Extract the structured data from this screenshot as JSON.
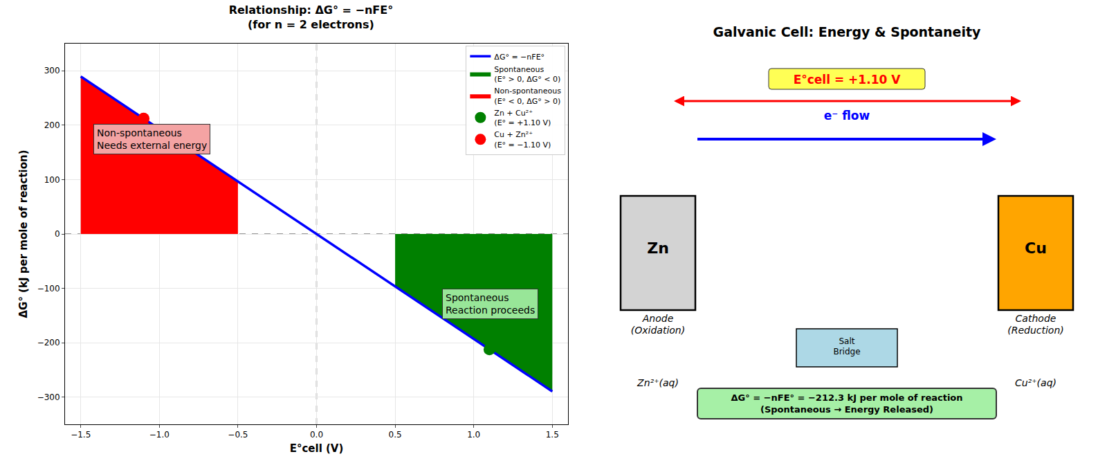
{
  "chart_data": {
    "type": "line",
    "title": "Relationship: ΔG° = −nFE°\n(for n = 2 electrons)",
    "x_label": "E°cell (V)",
    "y_label": "ΔG° (kJ per mole of reaction)",
    "xlim": [
      -1.6,
      1.6
    ],
    "xticks": [
      {
        "value": -1.5,
        "label": "−1.5"
      },
      {
        "value": -1.0,
        "label": "−1.0"
      },
      {
        "value": -0.5,
        "label": "−0.5"
      },
      {
        "value": 0,
        "label": "0.0"
      },
      0.5,
      {
        "value": 1.0,
        "label": "1.0"
      },
      1.5
    ],
    "ylim": [
      -350,
      350
    ],
    "yticks": [
      {
        "value": -300,
        "label": "−300"
      },
      {
        "value": -200,
        "label": "−200"
      },
      {
        "value": -100,
        "label": "−100"
      },
      0,
      100,
      200,
      300
    ],
    "grid": true,
    "legend": "upper right",
    "reference_lines": [
      {
        "axis": "x",
        "value": 0
      },
      {
        "axis": "y",
        "value": 0
      }
    ],
    "series": [
      {
        "name": "ΔG° = −nFE°",
        "type": "line",
        "color": "blue",
        "x": [
          -1.5,
          -1.0,
          -0.5,
          0,
          0.5,
          1.0,
          1.5
        ],
        "values": [
          289.5,
          193,
          96.5,
          0,
          -96.5,
          -193,
          -289.5
        ]
      },
      {
        "name": "Spontaneous\n(E° > 0, ΔG° < 0)",
        "type": "area",
        "color": "green",
        "x": [
          0.5,
          1.0,
          1.5
        ],
        "values": [
          -96.5,
          -193,
          -289.5
        ]
      },
      {
        "name": "Non-spontaneous\n(E° < 0, ΔG° > 0)",
        "type": "area",
        "color": "red",
        "x": [
          -1.5,
          -1.0,
          -0.5
        ],
        "values": [
          289.5,
          193,
          96.5
        ]
      },
      {
        "name": "Zn + Cu²⁺\n(E° = +1.10 V)",
        "type": "scatter",
        "color": "green",
        "marker": "circle",
        "x": [
          1.1
        ],
        "values": [
          -212.3
        ]
      },
      {
        "name": "Cu + Zn²⁺\n(E° = −1.10 V)",
        "type": "scatter",
        "color": "red",
        "marker": "circle",
        "x": [
          -1.1
        ],
        "values": [
          212.3
        ]
      }
    ],
    "annotations": [
      {
        "text": "Non-spontaneous\nNeeds external energy",
        "x": -1.42,
        "y": 202,
        "color": "#f4a3a3"
      },
      {
        "text": "Spontaneous\nReaction proceeds",
        "x": 0.8,
        "y": -100,
        "color": "#98e698"
      }
    ]
  },
  "diagram": {
    "title": "Galvanic Cell: Energy & Spontaneity",
    "cell_potential": "E°cell = +1.10 V",
    "electron_flow": "e⁻ flow",
    "anode": {
      "label": "Zn",
      "role": "Anode\n(Oxidation)",
      "solution": "Zn²⁺(aq)"
    },
    "cathode": {
      "label": "Cu",
      "role": "Cathode\n(Reduction)",
      "solution": "Cu²⁺(aq)"
    },
    "salt_bridge": "Salt\nBridge",
    "result": "ΔG° = −nFE° = −212.3 kJ per mole of reaction\n(Spontaneous → Energy Released)"
  }
}
